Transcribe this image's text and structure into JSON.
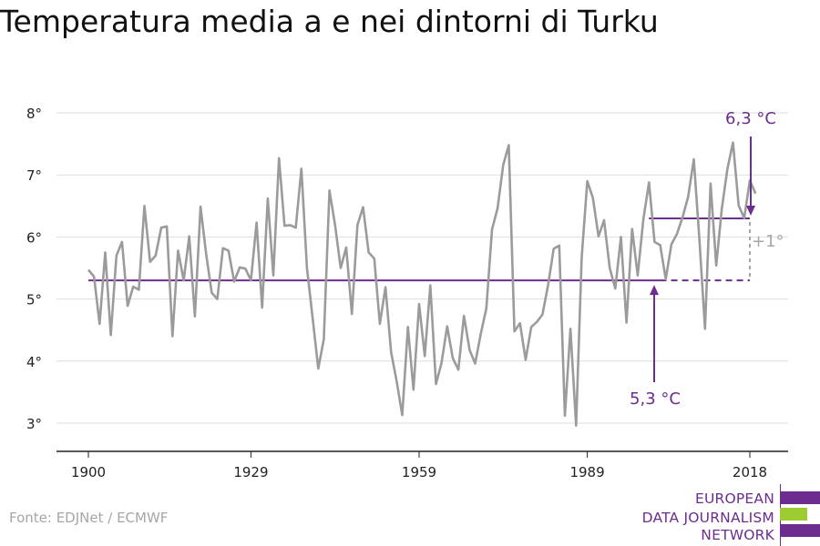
{
  "chart_data": {
    "type": "line",
    "title": "Temperatura media a e nei dintorni di Turku",
    "xlabel": "",
    "ylabel": "",
    "xlim": [
      1900,
      2018
    ],
    "ylim": [
      2.5,
      8.4
    ],
    "y_ticks": [
      3,
      4,
      5,
      6,
      7,
      8
    ],
    "y_tick_labels": [
      "3°",
      "4°",
      "5°",
      "6°",
      "7°",
      "8°"
    ],
    "x_ticks": [
      1900,
      1929,
      1959,
      1989,
      2018
    ],
    "x_tick_labels": [
      "1900",
      "1929",
      "1959",
      "1989",
      "2018"
    ],
    "grid": true,
    "series": [
      {
        "name": "",
        "color": "#9b9b9b",
        "x": [
          1900,
          1901,
          1902,
          1903,
          1904,
          1905,
          1906,
          1907,
          1908,
          1909,
          1910,
          1911,
          1912,
          1913,
          1914,
          1915,
          1916,
          1917,
          1918,
          1919,
          1920,
          1921,
          1922,
          1923,
          1924,
          1925,
          1926,
          1927,
          1928,
          1929,
          1930,
          1931,
          1932,
          1933,
          1934,
          1935,
          1936,
          1937,
          1938,
          1939,
          1940,
          1941,
          1942,
          1943,
          1944,
          1945,
          1946,
          1947,
          1948,
          1949,
          1950,
          1951,
          1952,
          1953,
          1954,
          1955,
          1956,
          1957,
          1958,
          1959,
          1960,
          1961,
          1962,
          1963,
          1964,
          1965,
          1966,
          1967,
          1968,
          1969,
          1970,
          1971,
          1972,
          1973,
          1974,
          1975,
          1976,
          1977,
          1978,
          1979,
          1980,
          1981,
          1982,
          1983,
          1984,
          1985,
          1986,
          1987,
          1988,
          1989,
          1990,
          1991,
          1992,
          1993,
          1994,
          1995,
          1996,
          1997,
          1998,
          1999,
          2000,
          2001,
          2002,
          2003,
          2004,
          2005,
          2006,
          2007,
          2008,
          2009,
          2010,
          2011,
          2012,
          2013,
          2014,
          2015,
          2016,
          2017,
          2018,
          2019
        ],
        "values": [
          5.47,
          5.36,
          4.6,
          5.75,
          4.42,
          5.7,
          5.92,
          4.89,
          5.2,
          5.15,
          6.5,
          5.6,
          5.7,
          6.15,
          6.17,
          4.4,
          5.78,
          5.3,
          6.01,
          4.72,
          6.49,
          5.73,
          5.1,
          5.0,
          5.82,
          5.78,
          5.28,
          5.51,
          5.49,
          5.3,
          6.23,
          4.86,
          6.62,
          5.38,
          7.27,
          6.18,
          6.19,
          6.15,
          7.1,
          5.5,
          4.7,
          3.88,
          4.35,
          6.75,
          6.2,
          5.5,
          5.83,
          4.76,
          6.19,
          6.48,
          5.75,
          5.65,
          4.6,
          5.19,
          4.15,
          3.67,
          3.13,
          4.55,
          3.54,
          4.92,
          4.08,
          5.22,
          3.63,
          3.97,
          4.56,
          4.05,
          3.86,
          4.73,
          4.18,
          3.96,
          4.44,
          4.85,
          6.12,
          6.46,
          7.16,
          7.48,
          4.48,
          4.61,
          4.02,
          4.55,
          4.63,
          4.75,
          5.22,
          5.81,
          5.86,
          3.12,
          4.52,
          2.96,
          5.66,
          6.9,
          6.63,
          6.01,
          6.27,
          5.5,
          5.17,
          6.0,
          4.62,
          6.13,
          5.38,
          6.28,
          6.88,
          5.92,
          5.87,
          5.32,
          5.88,
          6.05,
          6.32,
          6.65,
          7.25,
          5.97,
          4.52,
          6.86,
          5.54,
          6.45,
          7.1,
          7.52,
          6.51,
          6.3,
          6.91,
          6.7
        ]
      }
    ],
    "baseline": {
      "value": 5.3,
      "x_start": 1900,
      "x_end": 2018,
      "solid_until": 2002,
      "color": "#6c2d8e"
    },
    "recent_mean": {
      "value": 6.3,
      "x_start": 2000,
      "x_end": 2018,
      "color": "#6c2d8e"
    },
    "annotations": {
      "recent_label": "6,3 °C",
      "baseline_label": "5,3 °C",
      "difference_label": "+1°"
    }
  },
  "source": "Fonte: EDJNet / ECMWF",
  "logo": {
    "line1": "EUROPEAN",
    "line2": "DATA JOURNALISM",
    "line3": "NETWORK",
    "colors": [
      "#6c2d8e",
      "#9ccb32",
      "#6c2d8e"
    ]
  }
}
